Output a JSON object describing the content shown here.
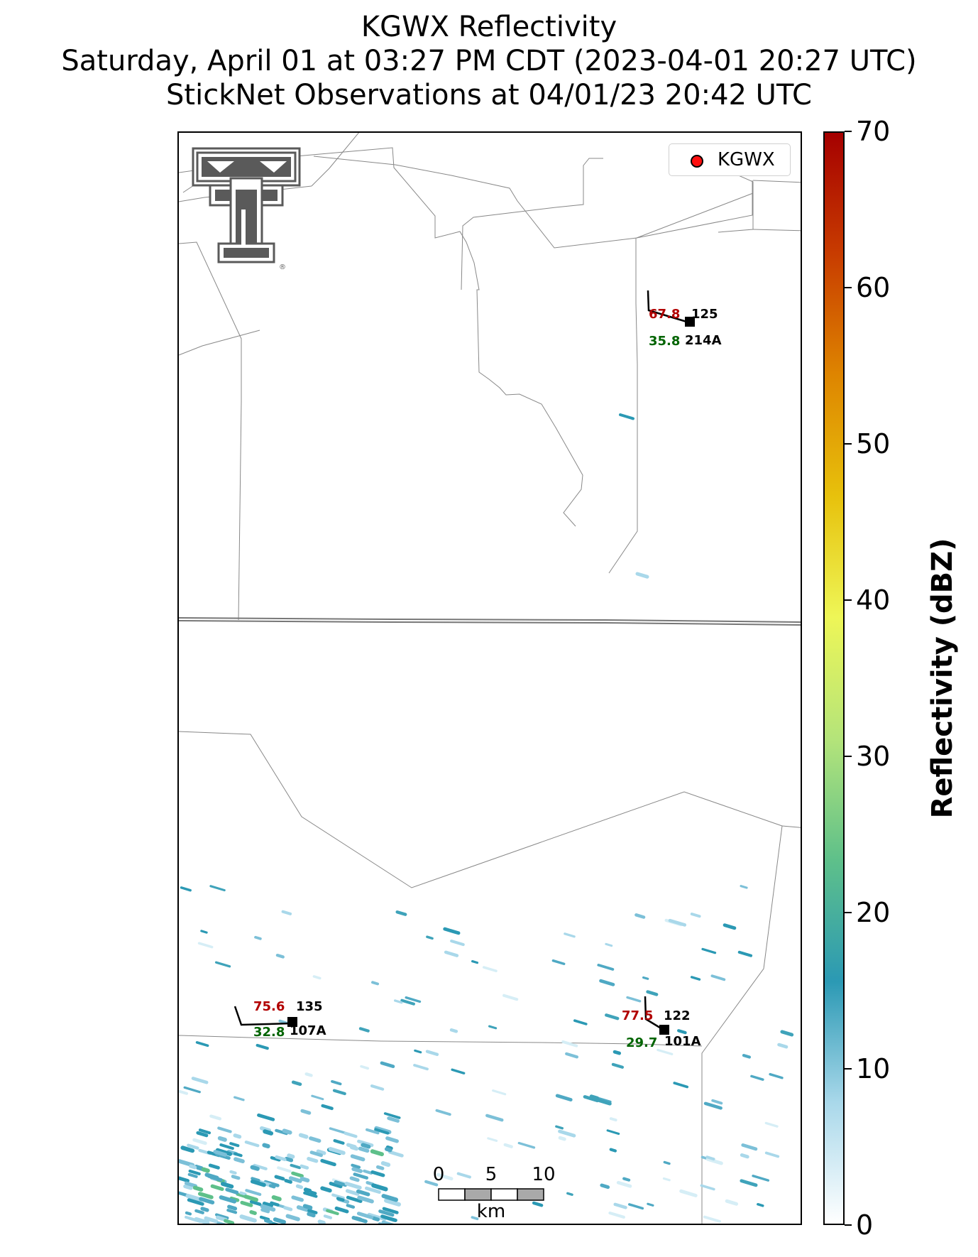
{
  "title": {
    "line1": "KGWX Reflectivity",
    "line2": "Saturday, April 01 at 03:27 PM CDT (2023-04-01 20:27 UTC)",
    "line3": "StickNet Observations at 04/01/23 20:42 UTC"
  },
  "legend": {
    "label": "KGWX",
    "marker_color": "#ff1010"
  },
  "logo": {
    "name": "texas-tech-double-t-logo",
    "registered_mark": "®",
    "color": "#5a5a5a"
  },
  "stations": [
    {
      "id": "214A",
      "temperature": "67.8",
      "dewpoint": "35.8",
      "pressure_code": "125"
    },
    {
      "id": "107A",
      "temperature": "75.6",
      "dewpoint": "32.8",
      "pressure_code": "135"
    },
    {
      "id": "101A",
      "temperature": "77.5",
      "dewpoint": "29.7",
      "pressure_code": "122"
    }
  ],
  "scale_bar": {
    "labels": [
      "0",
      "5",
      "10"
    ],
    "unit": "km"
  },
  "colorbar": {
    "label": "Reflectivity (dBZ)",
    "ticks": [
      "0",
      "10",
      "20",
      "30",
      "40",
      "50",
      "60",
      "70"
    ],
    "min": 0,
    "max": 70,
    "colors": [
      "#ffffff",
      "#a9d8ea",
      "#2b99b4",
      "#5ec08a",
      "#b4e47a",
      "#eef657",
      "#e7c10c",
      "#de8500",
      "#c83c00",
      "#a50000"
    ]
  }
}
